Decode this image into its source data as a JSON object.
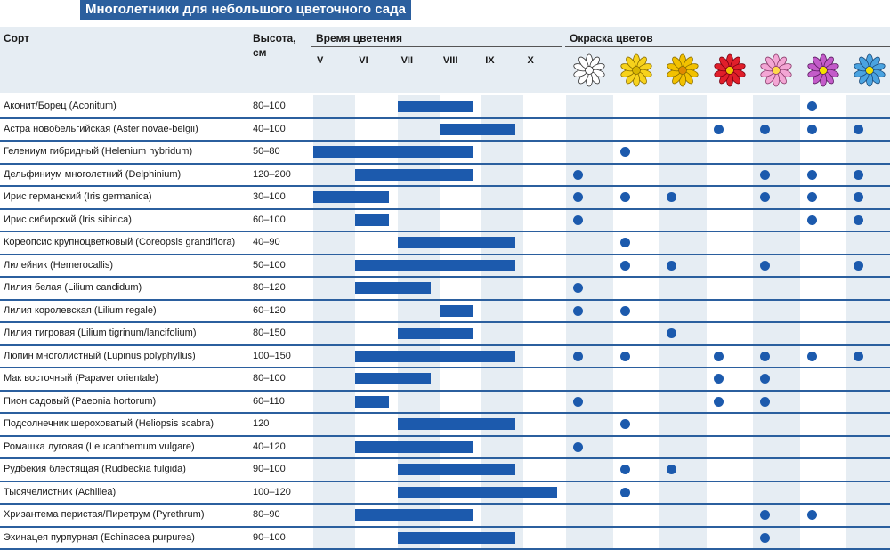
{
  "title": "Многолетники для небольшого цветочного сада",
  "header": {
    "sort": "Сорт",
    "height_line1": "Высота,",
    "height_line2": "см",
    "bloom_time": "Время цветения",
    "colors": "Окраска цветов"
  },
  "months": [
    "V",
    "VI",
    "VII",
    "VIII",
    "IX",
    "X"
  ],
  "flower_colors": [
    {
      "name": "white",
      "petal": "#ffffff",
      "stroke": "#333333",
      "center": "#ffffff"
    },
    {
      "name": "yellow",
      "petal": "#f7d21c",
      "stroke": "#8a6d00",
      "center": "#d9b500"
    },
    {
      "name": "yellow-orange",
      "petal": "#f2c100",
      "stroke": "#8a6d00",
      "center": "#e08a00"
    },
    {
      "name": "red",
      "petal": "#e01f2a",
      "stroke": "#7a0010",
      "center": "#f3c200"
    },
    {
      "name": "pink",
      "petal": "#f3a6d4",
      "stroke": "#8a3a6a",
      "center": "#ffd94a"
    },
    {
      "name": "purple",
      "petal": "#c35bc9",
      "stroke": "#5a1a60",
      "center": "#f3e100"
    },
    {
      "name": "blue",
      "petal": "#4aa3e0",
      "stroke": "#1a4a7a",
      "center": "#f3e100"
    }
  ],
  "chart_data": {
    "type": "table",
    "columns": [
      "Сорт",
      "Высота, см",
      "Время цветения",
      "Окраска цветов"
    ],
    "rows": [
      {
        "name": "Аконит/Борец (Aconitum)",
        "height": "80–100",
        "bloom": [
          7,
          8.8
        ],
        "colors": [
          0,
          0,
          0,
          0,
          0,
          1,
          0
        ]
      },
      {
        "name": "Астра новобельгийская (Aster novae-belgii)",
        "height": "40–100",
        "bloom": [
          8,
          9.8
        ],
        "colors": [
          0,
          0,
          0,
          1,
          1,
          1,
          1
        ]
      },
      {
        "name": "Гелениум гибридный (Helenium hybridum)",
        "height": "50–80",
        "bloom": [
          5,
          8.8
        ],
        "colors": [
          0,
          1,
          0,
          0,
          0,
          0,
          0
        ]
      },
      {
        "name": "Дельфиниум многолетний (Delphinium)",
        "height": "120–200",
        "bloom": [
          6,
          8.8
        ],
        "colors": [
          1,
          0,
          0,
          0,
          1,
          1,
          1
        ]
      },
      {
        "name": "Ирис германский (Iris germanica)",
        "height": "30–100",
        "bloom": [
          5,
          6.8
        ],
        "colors": [
          1,
          1,
          1,
          0,
          1,
          1,
          1
        ]
      },
      {
        "name": "Ирис сибирский (Iris sibirica)",
        "height": "60–100",
        "bloom": [
          6,
          6.8
        ],
        "colors": [
          1,
          0,
          0,
          0,
          0,
          1,
          1
        ]
      },
      {
        "name": "Кореопсис крупноцветковый (Coreopsis grandiflora)",
        "height": "40–90",
        "bloom": [
          7,
          9.8
        ],
        "colors": [
          0,
          1,
          0,
          0,
          0,
          0,
          0
        ]
      },
      {
        "name": "Лилейник (Hemerocallis)",
        "height": "50–100",
        "bloom": [
          6,
          9.8
        ],
        "colors": [
          0,
          1,
          1,
          0,
          1,
          0,
          1
        ]
      },
      {
        "name": "Лилия белая (Lilium candidum)",
        "height": "80–120",
        "bloom": [
          6,
          7.8
        ],
        "colors": [
          1,
          0,
          0,
          0,
          0,
          0,
          0
        ]
      },
      {
        "name": "Лилия королевская (Lilium regale)",
        "height": "60–120",
        "bloom": [
          8,
          8.8
        ],
        "colors": [
          1,
          1,
          0,
          0,
          0,
          0,
          0
        ]
      },
      {
        "name": "Лилия тигровая (Lilium tigrinum/lancifolium)",
        "height": "80–150",
        "bloom": [
          7,
          8.8
        ],
        "colors": [
          0,
          0,
          1,
          0,
          0,
          0,
          0
        ]
      },
      {
        "name": "Люпин многолистный (Lupinus polyphyllus)",
        "height": "100–150",
        "bloom": [
          6,
          9.8
        ],
        "colors": [
          1,
          1,
          0,
          1,
          1,
          1,
          1
        ]
      },
      {
        "name": "Мак восточный (Papaver orientale)",
        "height": "80–100",
        "bloom": [
          6,
          7.8
        ],
        "colors": [
          0,
          0,
          0,
          1,
          1,
          0,
          0
        ]
      },
      {
        "name": "Пион садовый (Paeonia hortorum)",
        "height": "60–110",
        "bloom": [
          6,
          6.8
        ],
        "colors": [
          1,
          0,
          0,
          1,
          1,
          0,
          0
        ]
      },
      {
        "name": "Подсолнечник шероховатый (Heliopsis scabra)",
        "height": "120",
        "bloom": [
          7,
          9.8
        ],
        "colors": [
          0,
          1,
          0,
          0,
          0,
          0,
          0
        ]
      },
      {
        "name": "Ромашка луговая (Leucanthemum vulgare)",
        "height": "40–120",
        "bloom": [
          6,
          8.8
        ],
        "colors": [
          1,
          0,
          0,
          0,
          0,
          0,
          0
        ]
      },
      {
        "name": "Рудбекия блестящая (Rudbeckia fulgida)",
        "height": "90–100",
        "bloom": [
          7,
          9.8
        ],
        "colors": [
          0,
          1,
          1,
          0,
          0,
          0,
          0
        ]
      },
      {
        "name": "Тысячелистник (Achillea)",
        "height": "100–120",
        "bloom": [
          7,
          10.8
        ],
        "colors": [
          0,
          1,
          0,
          0,
          0,
          0,
          0
        ]
      },
      {
        "name": "Хризантема перистая/Пиретрум (Pyrethrum)",
        "height": "80–90",
        "bloom": [
          6,
          8.8
        ],
        "colors": [
          0,
          0,
          0,
          0,
          1,
          1,
          0
        ]
      },
      {
        "name": "Эхинацея пурпурная (Echinacea purpurea)",
        "height": "90–100",
        "bloom": [
          7,
          9.8
        ],
        "colors": [
          0,
          0,
          0,
          0,
          1,
          0,
          0
        ]
      }
    ]
  }
}
